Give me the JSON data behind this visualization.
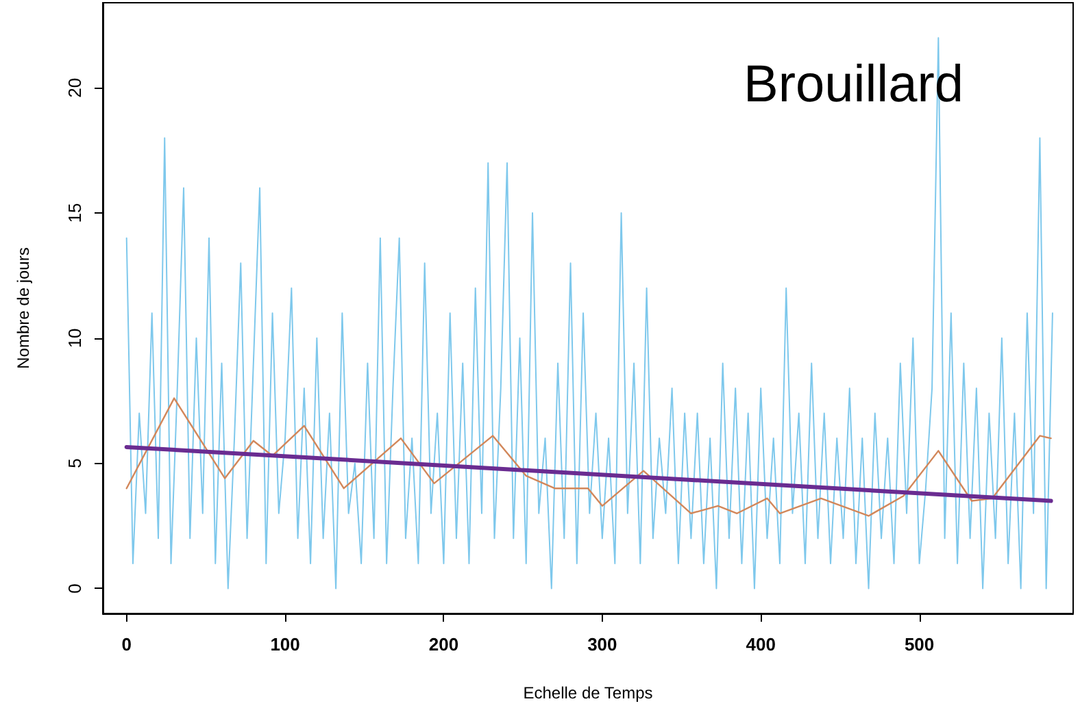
{
  "chart_data": {
    "type": "line",
    "title": "Brouillard",
    "xlabel": "Echelle de Temps",
    "ylabel": "Nombre de jours",
    "xlim": [
      -15,
      597
    ],
    "ylim": [
      -1,
      23.4
    ],
    "xticks": [
      0,
      100,
      200,
      300,
      400,
      500
    ],
    "yticks": [
      0,
      5,
      10,
      15,
      20
    ],
    "line_style": "solid",
    "series": [
      {
        "color": "#7ec8ec",
        "x": [
          0,
          4,
          8,
          12,
          16,
          20,
          24,
          28,
          32,
          36,
          40,
          44,
          48,
          52,
          56,
          60,
          64,
          68,
          72,
          76,
          80,
          84,
          88,
          92,
          96,
          100,
          104,
          108,
          112,
          116,
          120,
          124,
          128,
          132,
          136,
          140,
          144,
          148,
          152,
          156,
          160,
          164,
          168,
          172,
          176,
          180,
          184,
          188,
          192,
          196,
          200,
          204,
          208,
          212,
          216,
          220,
          224,
          228,
          232,
          236,
          240,
          244,
          248,
          252,
          256,
          260,
          264,
          268,
          272,
          276,
          280,
          284,
          288,
          292,
          296,
          300,
          304,
          308,
          312,
          316,
          320,
          324,
          328,
          332,
          336,
          340,
          344,
          348,
          352,
          356,
          360,
          364,
          368,
          372,
          376,
          380,
          384,
          388,
          392,
          396,
          400,
          404,
          408,
          412,
          416,
          420,
          424,
          428,
          432,
          436,
          440,
          444,
          448,
          452,
          456,
          460,
          464,
          468,
          472,
          476,
          480,
          484,
          488,
          492,
          496,
          500,
          504,
          508,
          512,
          516,
          520,
          524,
          528,
          532,
          536,
          540,
          544,
          548,
          552,
          556,
          560,
          564,
          568,
          572,
          576,
          580,
          584
        ],
        "values": [
          14,
          1,
          7,
          3,
          11,
          2,
          18,
          1,
          8,
          16,
          2,
          10,
          3,
          14,
          1,
          9,
          0,
          6,
          13,
          2,
          9,
          16,
          1,
          11,
          3,
          6,
          12,
          2,
          8,
          1,
          10,
          2,
          7,
          0,
          11,
          3,
          5,
          1,
          9,
          2,
          14,
          1,
          8,
          14,
          2,
          6,
          1,
          13,
          3,
          7,
          1,
          11,
          2,
          9,
          1,
          12,
          3,
          17,
          2,
          8,
          17,
          2,
          10,
          1,
          15,
          3,
          6,
          0,
          9,
          2,
          13,
          1,
          11,
          3,
          7,
          2,
          6,
          1,
          15,
          3,
          9,
          1,
          12,
          2,
          6,
          3,
          8,
          1,
          7,
          2,
          7,
          1,
          6,
          0,
          9,
          2,
          8,
          1,
          7,
          0,
          8,
          2,
          6,
          1,
          12,
          3,
          7,
          1,
          9,
          2,
          7,
          1,
          6,
          2,
          8,
          1,
          6,
          0,
          7,
          2,
          6,
          1,
          9,
          3,
          10,
          1,
          4,
          8,
          22,
          2,
          11,
          1,
          9,
          2,
          8,
          0,
          7,
          2,
          10,
          1,
          7,
          0,
          11,
          3,
          18,
          0,
          11
        ]
      },
      {
        "color": "#d2875a",
        "x": [
          0,
          30,
          62,
          80,
          92,
          112,
          137,
          173,
          194,
          231,
          252,
          270,
          291,
          300,
          326,
          356,
          373,
          385,
          404,
          412,
          438,
          468,
          490,
          512,
          533,
          546,
          576,
          583
        ],
        "values": [
          4,
          7.6,
          4.4,
          5.9,
          5.3,
          6.5,
          4,
          6,
          4.2,
          6.1,
          4.5,
          4,
          4,
          3.3,
          4.7,
          3,
          3.3,
          3,
          3.6,
          3,
          3.6,
          2.9,
          3.7,
          5.5,
          3.5,
          3.6,
          6.1,
          6
        ]
      },
      {
        "color": "#6a2c91",
        "x": [
          0,
          583
        ],
        "values": [
          5.65,
          3.5
        ]
      }
    ]
  }
}
